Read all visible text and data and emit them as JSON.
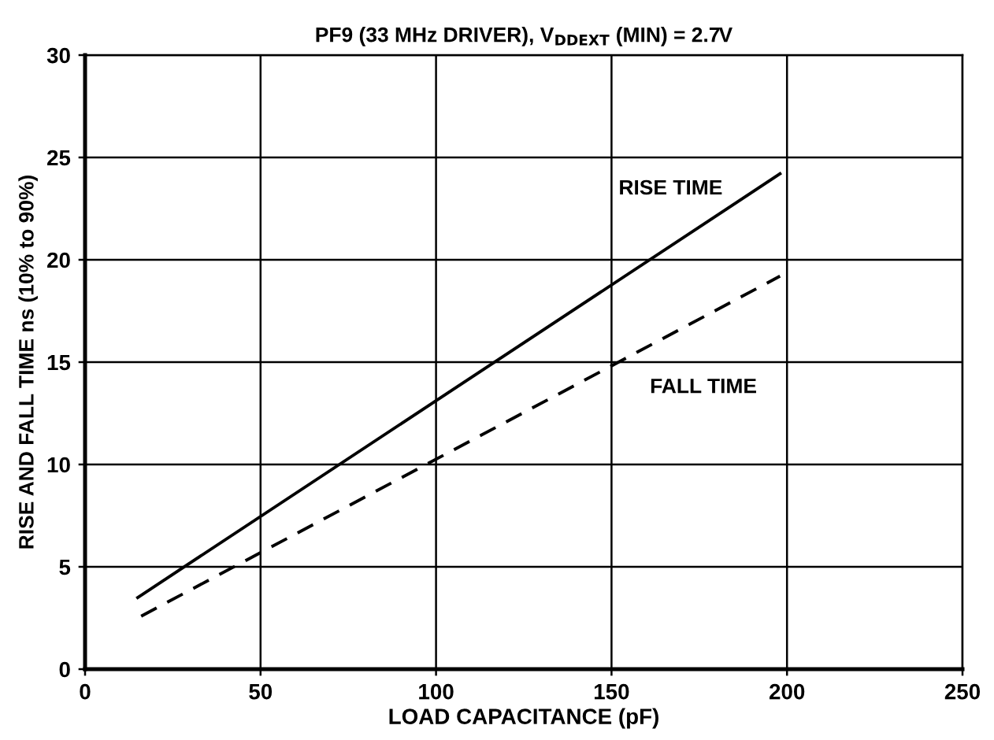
{
  "chart_data": {
    "type": "line",
    "title": "PF9 (33 MHz DRIVER), V$_{DDEXT}$ (MIN) = 2.7V",
    "xlabel": "LOAD CAPACITANCE (pF)",
    "ylabel": "RISE AND FALL TIME ns (10% to 90%)",
    "x": [
      15,
      198
    ],
    "series": [
      {
        "name": "RISE TIME",
        "color": "#000000",
        "values": [
          3.5,
          24.2
        ],
        "line_style": "solid"
      },
      {
        "name": "FALL TIME",
        "color": "#000000",
        "values": [
          2.5,
          19.2
        ],
        "line_style": "dashed"
      }
    ],
    "xlim": [
      0,
      250
    ],
    "ylim": [
      0,
      30
    ],
    "xticks": [
      0,
      50,
      100,
      150,
      200,
      250
    ],
    "yticks": [
      0,
      5,
      10,
      15,
      20,
      25,
      30
    ],
    "grid": true,
    "legend": false,
    "marker": "none"
  }
}
